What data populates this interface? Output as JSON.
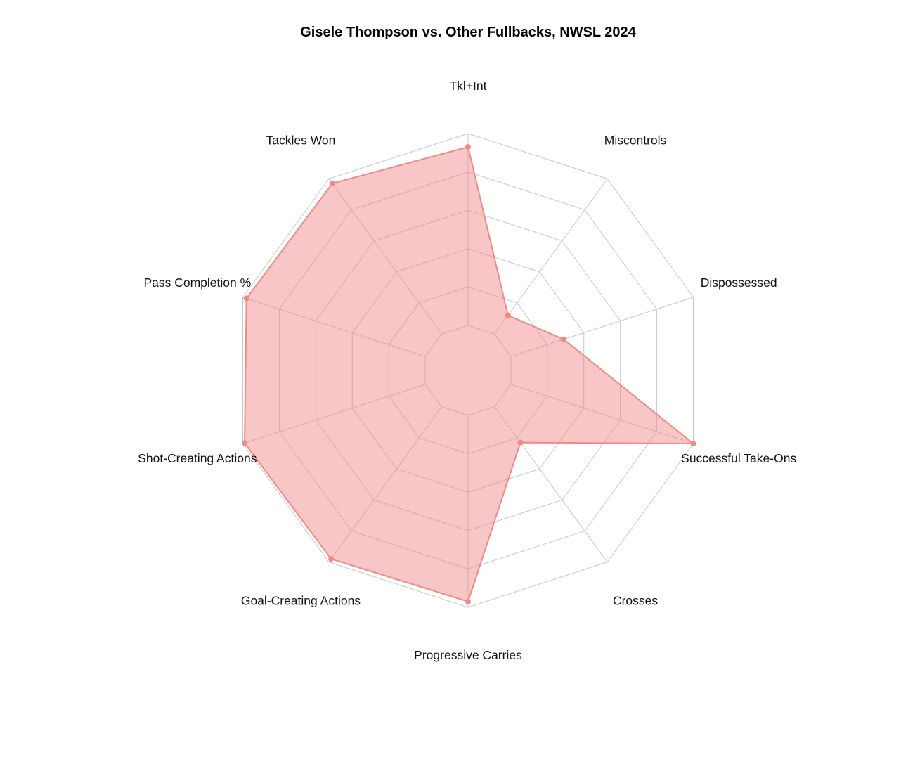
{
  "chart_data": {
    "type": "radar",
    "title": "Gisele Thompson vs. Other Fullbacks, NWSL 2024",
    "categories": [
      "Tkl+Int",
      "Miscontrols",
      "Dispossessed",
      "Successful Take-Ons",
      "Crosses",
      "Progressive Carries",
      "Goal-Creating Actions",
      "Shot-Creating Actions",
      "Pass Completion %",
      "Tackles Won"
    ],
    "series": [
      {
        "values": [
          0.93,
          0.12,
          0.29,
          1.0,
          0.23,
          0.97,
          0.98,
          0.99,
          0.98,
          0.97
        ],
        "color": "#f08a84"
      }
    ],
    "rlim": [
      0,
      1
    ],
    "grid_rings": 5,
    "inner_hole_fraction": 0.19,
    "legend": "none",
    "grid": true
  }
}
